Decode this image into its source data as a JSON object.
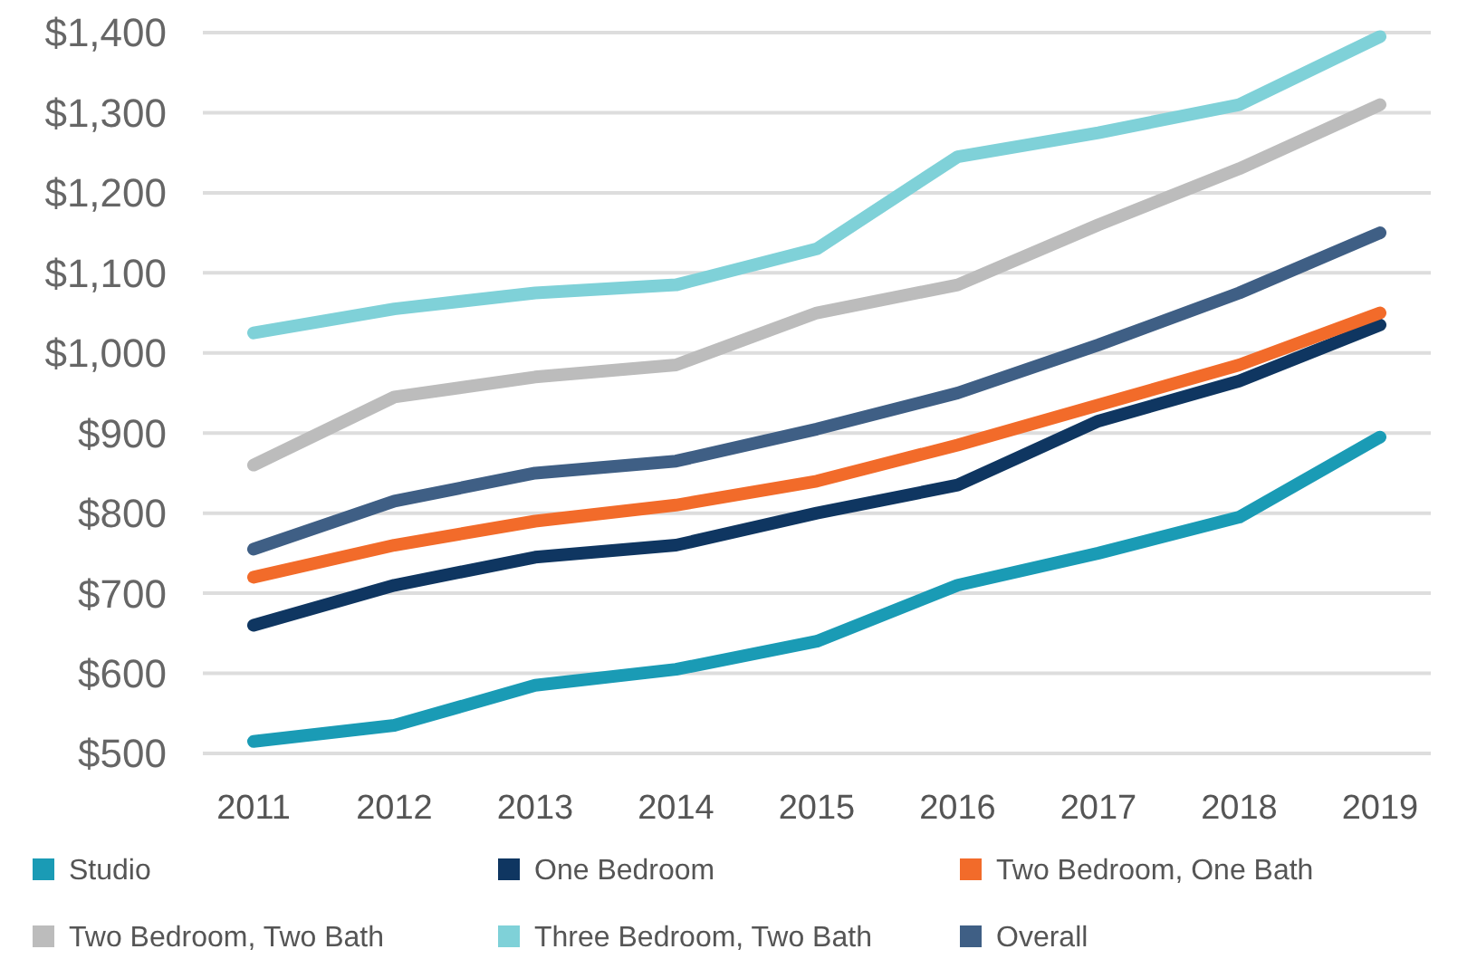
{
  "chart_data": {
    "type": "line",
    "categories": [
      "2011",
      "2012",
      "2013",
      "2014",
      "2015",
      "2016",
      "2017",
      "2018",
      "2019"
    ],
    "series": [
      {
        "name": "Studio",
        "color": "#1a9bb5",
        "values": [
          515,
          535,
          585,
          605,
          640,
          710,
          750,
          795,
          895
        ]
      },
      {
        "name": "One Bedroom",
        "color": "#0f3661",
        "values": [
          660,
          710,
          745,
          760,
          800,
          835,
          915,
          965,
          1035
        ]
      },
      {
        "name": "Two Bedroom, One Bath",
        "color": "#f26b2a",
        "values": [
          720,
          760,
          790,
          810,
          840,
          885,
          935,
          985,
          1050
        ]
      },
      {
        "name": "Two Bedroom, Two Bath",
        "color": "#bcbcbc",
        "values": [
          860,
          945,
          970,
          985,
          1050,
          1085,
          1160,
          1230,
          1310
        ]
      },
      {
        "name": "Three Bedroom, Two Bath",
        "color": "#7fd1d8",
        "values": [
          1025,
          1055,
          1075,
          1085,
          1130,
          1245,
          1275,
          1310,
          1395
        ]
      },
      {
        "name": "Overall",
        "color": "#3f5f85",
        "values": [
          755,
          815,
          850,
          865,
          905,
          950,
          1010,
          1075,
          1150
        ]
      }
    ],
    "ylim": [
      500,
      1400
    ],
    "yticks": [
      {
        "value": 500,
        "label": "$500"
      },
      {
        "value": 600,
        "label": "$600"
      },
      {
        "value": 700,
        "label": "$700"
      },
      {
        "value": 800,
        "label": "$800"
      },
      {
        "value": 900,
        "label": "$900"
      },
      {
        "value": 1000,
        "label": "$1,000"
      },
      {
        "value": 1100,
        "label": "$1,100"
      },
      {
        "value": 1200,
        "label": "$1,200"
      },
      {
        "value": 1300,
        "label": "$1,300"
      },
      {
        "value": 1400,
        "label": "$1,400"
      }
    ],
    "grid": "y",
    "legend": "bottom",
    "marker": "none",
    "line_style": "solid"
  }
}
